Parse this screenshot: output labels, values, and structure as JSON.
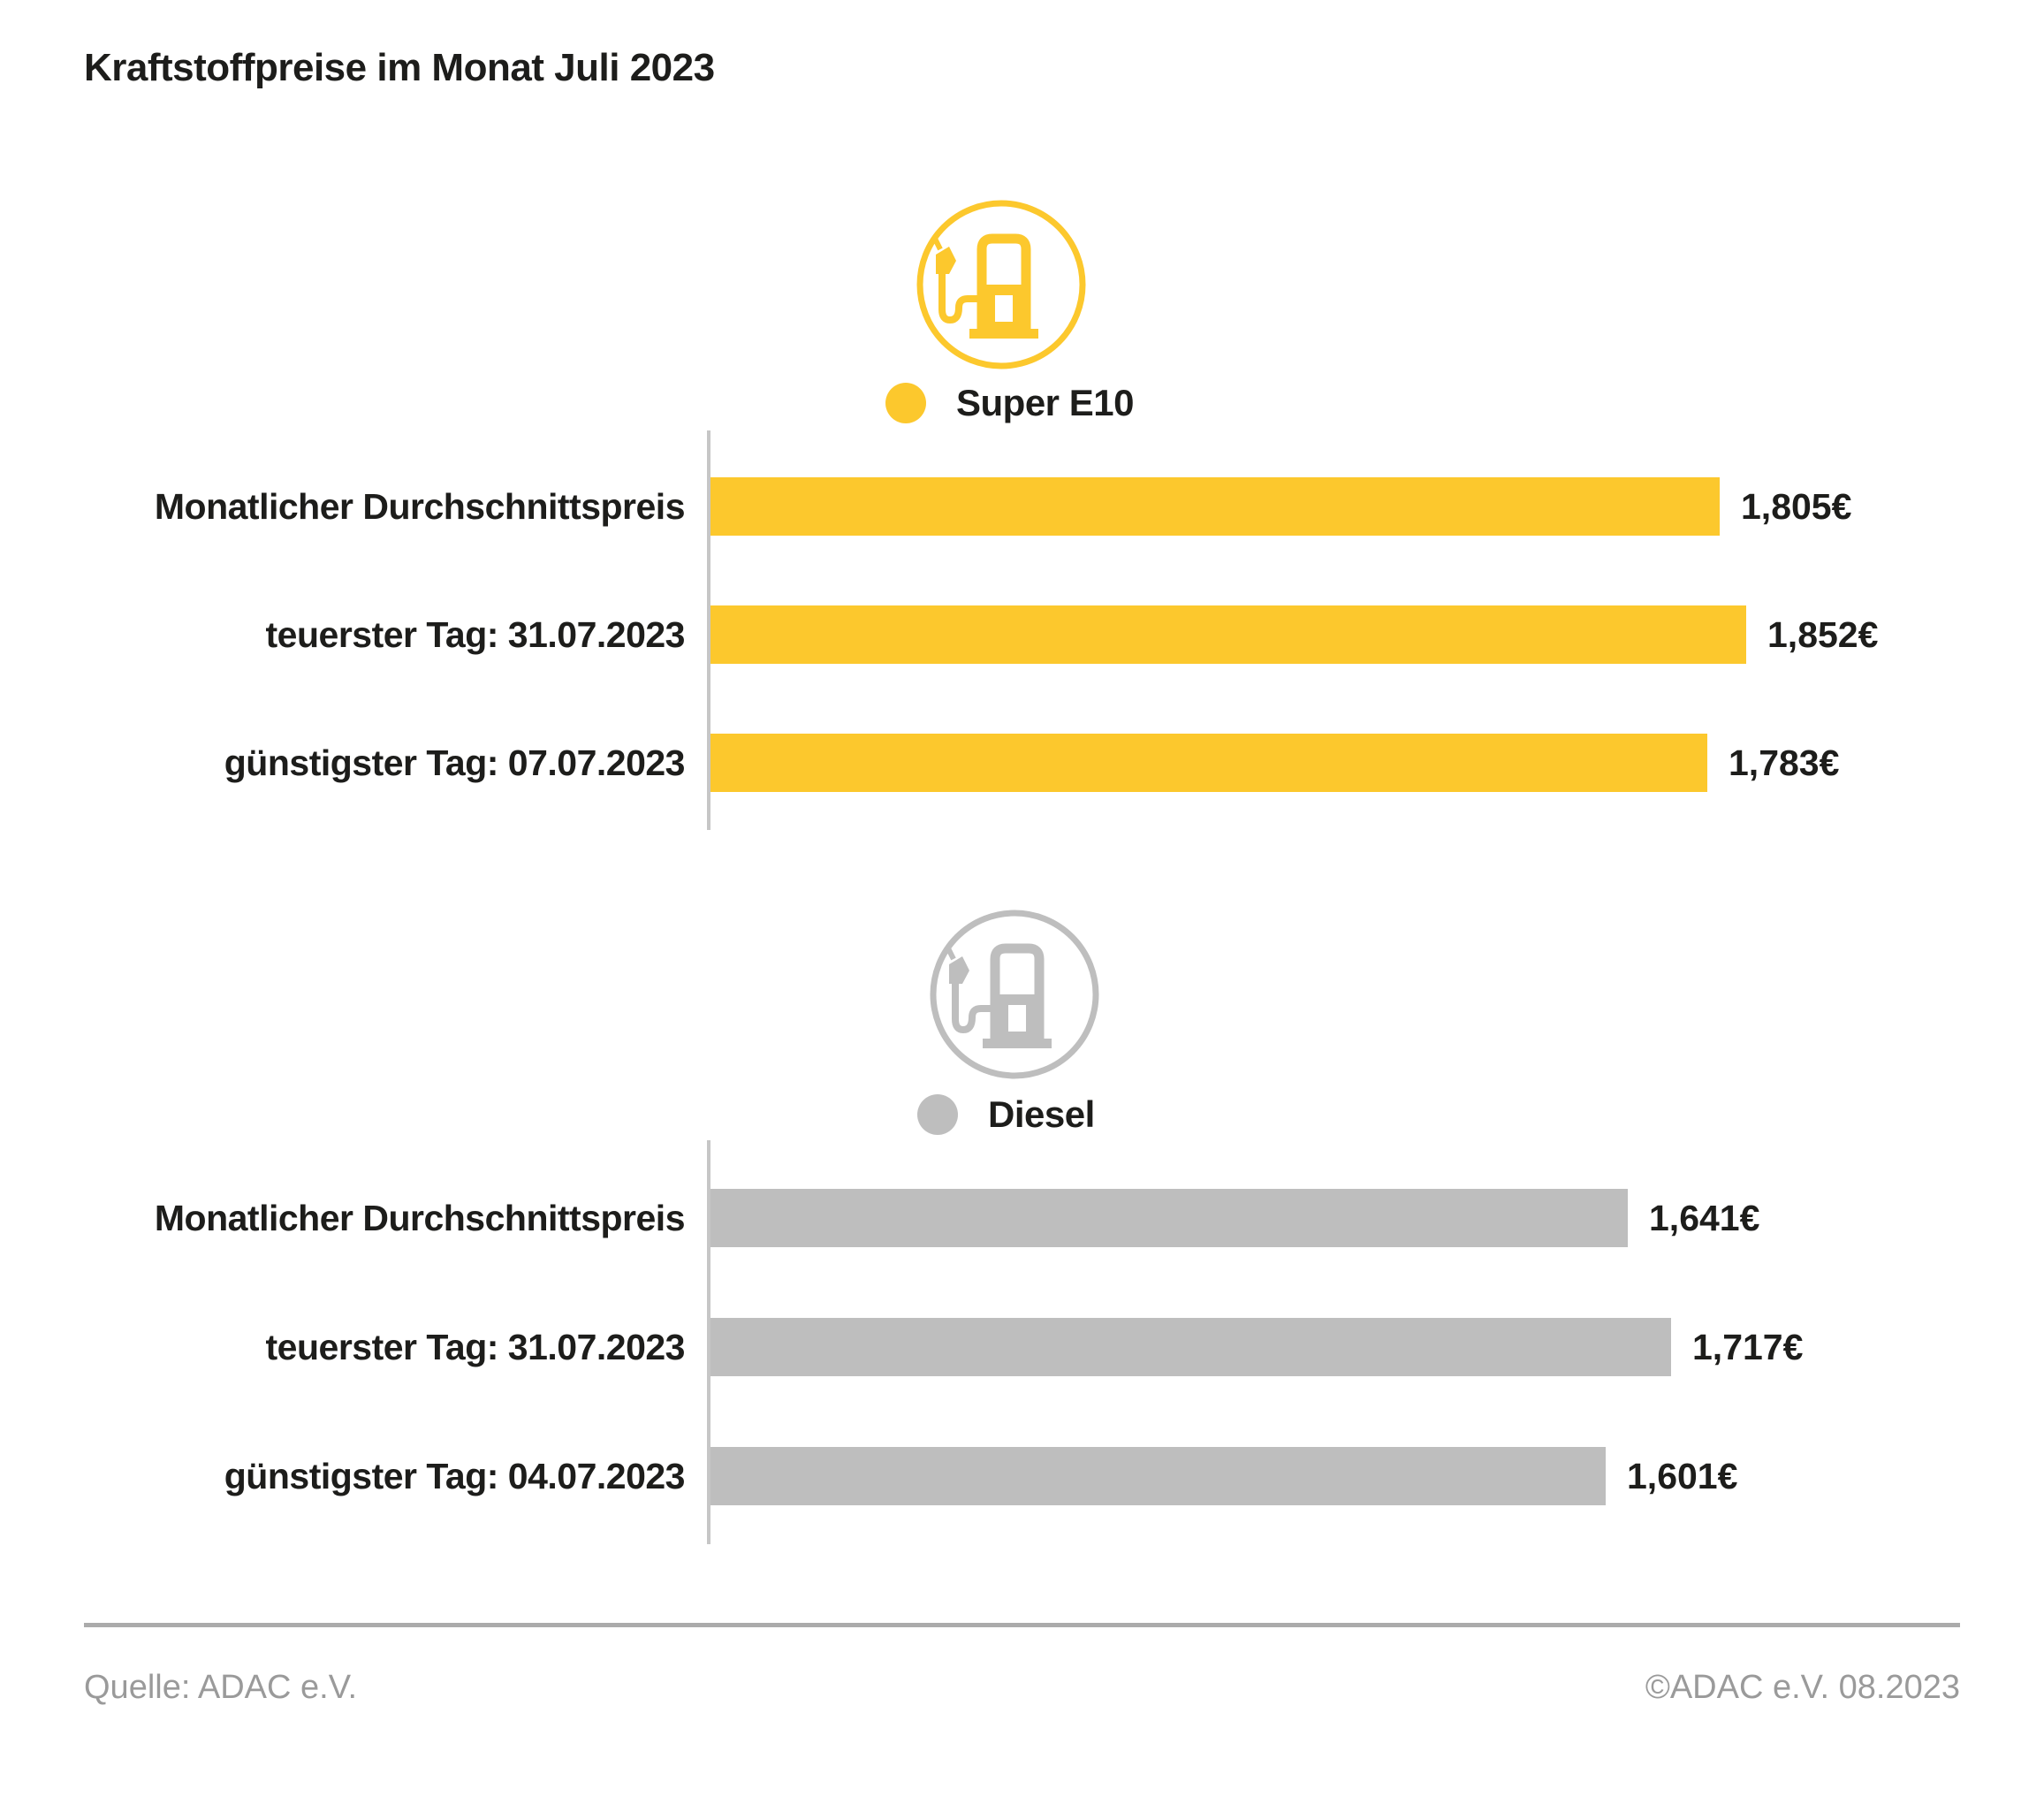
{
  "title": "Kraftstoffpreise im Monat Juli 2023",
  "colors": {
    "super_e10": "#FCC82D",
    "diesel": "#BEBEBE",
    "text_dark": "#1D1D1B",
    "text_gray": "#9A9A9A",
    "axis_line": "#C6C6C6"
  },
  "chart_data": [
    {
      "type": "bar",
      "orientation": "horizontal",
      "title": "Super E10",
      "icon": "fuel-pump-icon",
      "color": "#FCC82D",
      "categories": [
        "Monatlicher Durchschnittspreis",
        "teuerster Tag: 31.07.2023",
        "günstigster Tag: 07.07.2023"
      ],
      "values": [
        1.805,
        1.852,
        1.783
      ],
      "value_labels": [
        "1,805€",
        "1,852€",
        "1,783€"
      ],
      "xlim": [
        0,
        1.852
      ],
      "grid": false,
      "legend_position": "top"
    },
    {
      "type": "bar",
      "orientation": "horizontal",
      "title": "Diesel",
      "icon": "fuel-pump-icon",
      "color": "#BEBEBE",
      "categories": [
        "Monatlicher Durchschnittspreis",
        "teuerster Tag: 31.07.2023",
        "günstigster Tag: 04.07.2023"
      ],
      "values": [
        1.641,
        1.717,
        1.601
      ],
      "value_labels": [
        "1,641€",
        "1,717€",
        "1,601€"
      ],
      "xlim": [
        0,
        1.852
      ],
      "grid": false,
      "legend_position": "top"
    }
  ],
  "footer": {
    "source": "Quelle: ADAC e.V.",
    "copyright": "©ADAC e.V. 08.2023"
  }
}
